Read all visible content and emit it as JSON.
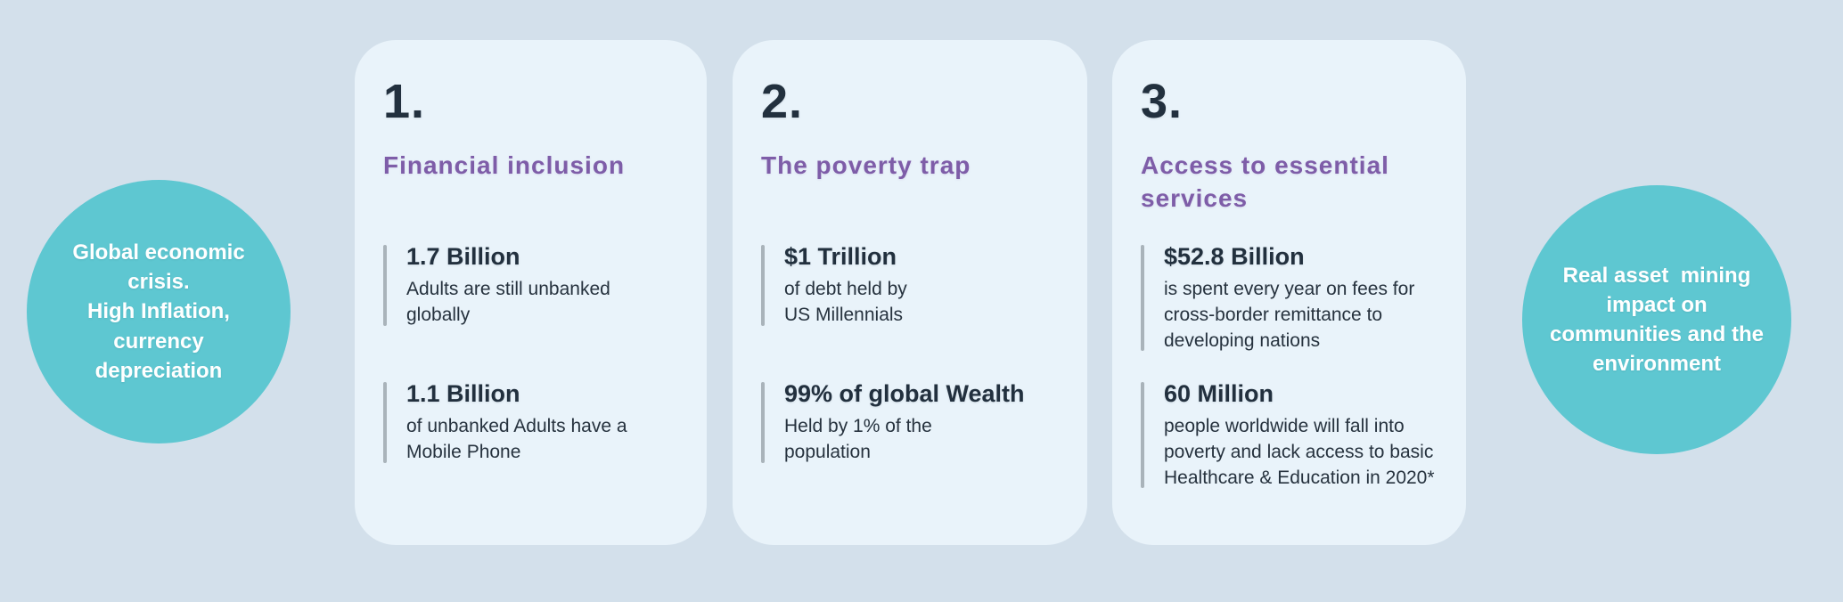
{
  "colors": {
    "page_bg": "#d3e0eb",
    "card_bg": "#e9f3fa",
    "circle_teal": "#5ec7d1",
    "heading_purple": "#7e5da8",
    "text_dark": "#22303e",
    "divider_gray": "#a9b3ba",
    "circle_text_white": "#ffffff"
  },
  "left_circle": {
    "lines": [
      "Global economic",
      "crisis.",
      "High Inflation,",
      "currency",
      "depreciation"
    ]
  },
  "right_circle": {
    "lines": [
      "Real asset  mining",
      "impact on",
      "communities and the",
      "environment"
    ]
  },
  "cards": [
    {
      "number": "1.",
      "title": "Financial inclusion",
      "stats": [
        {
          "value": "1.7 Billion",
          "desc": [
            "Adults are still unbanked",
            "globally"
          ]
        },
        {
          "value": "1.1 Billion",
          "desc": [
            "of unbanked Adults have a",
            "Mobile Phone"
          ]
        }
      ]
    },
    {
      "number": "2.",
      "title": "The poverty trap",
      "stats": [
        {
          "value": "$1 Trillion",
          "desc": [
            "of debt held by",
            "US Millennials"
          ]
        },
        {
          "value": "99% of global Wealth",
          "desc": [
            "Held by 1% of the",
            "population"
          ]
        }
      ]
    },
    {
      "number": "3.",
      "title": "Access to essential services",
      "stats": [
        {
          "value": "$52.8 Billion",
          "desc": [
            "is spent every year on fees for",
            "cross-border remittance to",
            "developing nations"
          ]
        },
        {
          "value": "60 Million",
          "desc": [
            "people worldwide will fall into",
            "poverty and lack access to basic",
            "Healthcare & Education in 2020*"
          ]
        }
      ]
    }
  ]
}
